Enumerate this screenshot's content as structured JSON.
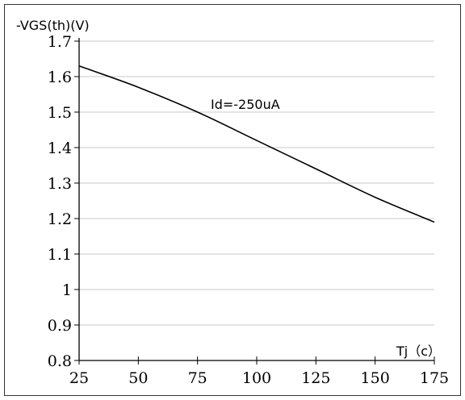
{
  "chart_data": {
    "type": "line",
    "title": "",
    "ylabel": "-VGS(th)(V)",
    "xlabel": "Tj（c）",
    "annotation": "Id=-250uA",
    "xlim": [
      25,
      175
    ],
    "ylim": [
      0.8,
      1.7
    ],
    "x_ticks": [
      25,
      50,
      75,
      100,
      125,
      150,
      175
    ],
    "x_tick_labels": [
      "25",
      "50",
      "75",
      "100",
      "125",
      "150",
      "175"
    ],
    "y_ticks": [
      0.8,
      0.9,
      1.0,
      1.1,
      1.2,
      1.3,
      1.4,
      1.5,
      1.6,
      1.7
    ],
    "y_tick_labels": [
      "0.8",
      "0.9",
      "1",
      "1.1",
      "1.2",
      "1.3",
      "1.4",
      "1.5",
      "1.6",
      "1.7"
    ],
    "grid": true,
    "legend": "none",
    "series": [
      {
        "color": "#000000",
        "x": [
          25,
          50,
          75,
          100,
          125,
          150,
          175
        ],
        "y": [
          1.63,
          1.57,
          1.5,
          1.42,
          1.34,
          1.26,
          1.19
        ]
      }
    ]
  }
}
